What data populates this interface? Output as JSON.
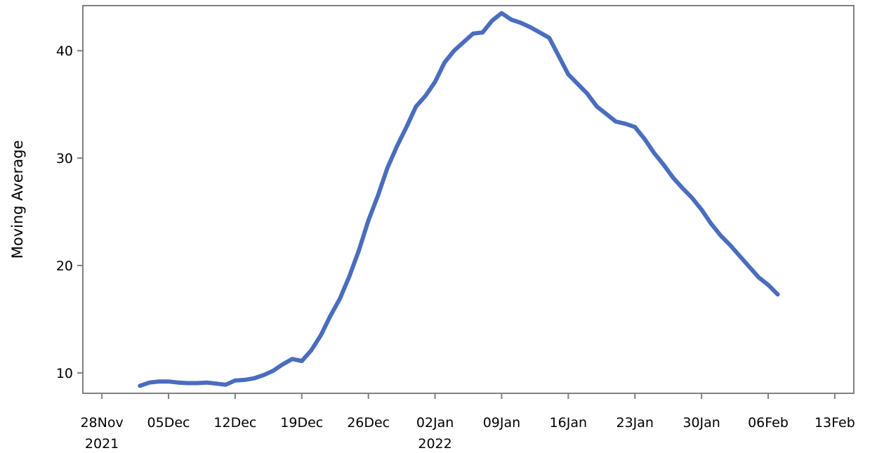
{
  "chart_data": {
    "type": "line",
    "title": "",
    "xlabel": "",
    "ylabel": "Moving Average",
    "x_range": [
      "2021-11-26",
      "2022-02-15"
    ],
    "ylim": [
      8.1,
      44.2
    ],
    "grid": false,
    "legend": "none",
    "line_color": "#4A6DBD",
    "frame_color": "#808080",
    "x_ticks": [
      {
        "date": "2021-11-28",
        "label": "28Nov",
        "sublabel": "2021"
      },
      {
        "date": "2021-12-05",
        "label": "05Dec",
        "sublabel": ""
      },
      {
        "date": "2021-12-12",
        "label": "12Dec",
        "sublabel": ""
      },
      {
        "date": "2021-12-19",
        "label": "19Dec",
        "sublabel": ""
      },
      {
        "date": "2021-12-26",
        "label": "26Dec",
        "sublabel": ""
      },
      {
        "date": "2022-01-02",
        "label": "02Jan",
        "sublabel": "2022"
      },
      {
        "date": "2022-01-09",
        "label": "09Jan",
        "sublabel": ""
      },
      {
        "date": "2022-01-16",
        "label": "16Jan",
        "sublabel": ""
      },
      {
        "date": "2022-01-23",
        "label": "23Jan",
        "sublabel": ""
      },
      {
        "date": "2022-01-30",
        "label": "30Jan",
        "sublabel": ""
      },
      {
        "date": "2022-02-06",
        "label": "06Feb",
        "sublabel": ""
      },
      {
        "date": "2022-02-13",
        "label": "13Feb",
        "sublabel": ""
      }
    ],
    "y_ticks": [
      10,
      20,
      30,
      40
    ],
    "series": [
      {
        "x": [
          "2021-12-02",
          "2021-12-03",
          "2021-12-04",
          "2021-12-05",
          "2021-12-06",
          "2021-12-07",
          "2021-12-08",
          "2021-12-09",
          "2021-12-10",
          "2021-12-11",
          "2021-12-12",
          "2021-12-13",
          "2021-12-14",
          "2021-12-15",
          "2021-12-16",
          "2021-12-17",
          "2021-12-18",
          "2021-12-19",
          "2021-12-20",
          "2021-12-21",
          "2021-12-22",
          "2021-12-23",
          "2021-12-24",
          "2021-12-25",
          "2021-12-26",
          "2021-12-27",
          "2021-12-28",
          "2021-12-29",
          "2021-12-30",
          "2021-12-31",
          "2022-01-01",
          "2022-01-02",
          "2022-01-03",
          "2022-01-04",
          "2022-01-05",
          "2022-01-06",
          "2022-01-07",
          "2022-01-08",
          "2022-01-09",
          "2022-01-10",
          "2022-01-11",
          "2022-01-12",
          "2022-01-13",
          "2022-01-14",
          "2022-01-15",
          "2022-01-16",
          "2022-01-17",
          "2022-01-18",
          "2022-01-19",
          "2022-01-20",
          "2022-01-21",
          "2022-01-22",
          "2022-01-23",
          "2022-01-24",
          "2022-01-25",
          "2022-01-26",
          "2022-01-27",
          "2022-01-28",
          "2022-01-29",
          "2022-01-30",
          "2022-01-31",
          "2022-02-01",
          "2022-02-02",
          "2022-02-03",
          "2022-02-04",
          "2022-02-05",
          "2022-02-06",
          "2022-02-07"
        ],
        "y": [
          8.8,
          9.1,
          9.2,
          9.2,
          9.1,
          9.05,
          9.05,
          9.1,
          9.0,
          8.9,
          9.3,
          9.35,
          9.5,
          9.8,
          10.2,
          10.8,
          11.3,
          11.1,
          12.1,
          13.5,
          15.3,
          16.9,
          19.0,
          21.4,
          24.2,
          26.5,
          29.1,
          31.1,
          32.9,
          34.8,
          35.8,
          37.1,
          38.9,
          40.0,
          40.8,
          41.6,
          41.7,
          42.8,
          43.5,
          42.9,
          42.6,
          42.2,
          41.7,
          41.2,
          39.5,
          37.8,
          36.9,
          36.0,
          34.8,
          34.1,
          33.4,
          33.2,
          32.9,
          31.8,
          30.5,
          29.4,
          28.2,
          27.2,
          26.3,
          25.2,
          23.9,
          22.8,
          21.9,
          20.9,
          19.9,
          18.9,
          18.2,
          17.3
        ]
      }
    ]
  }
}
